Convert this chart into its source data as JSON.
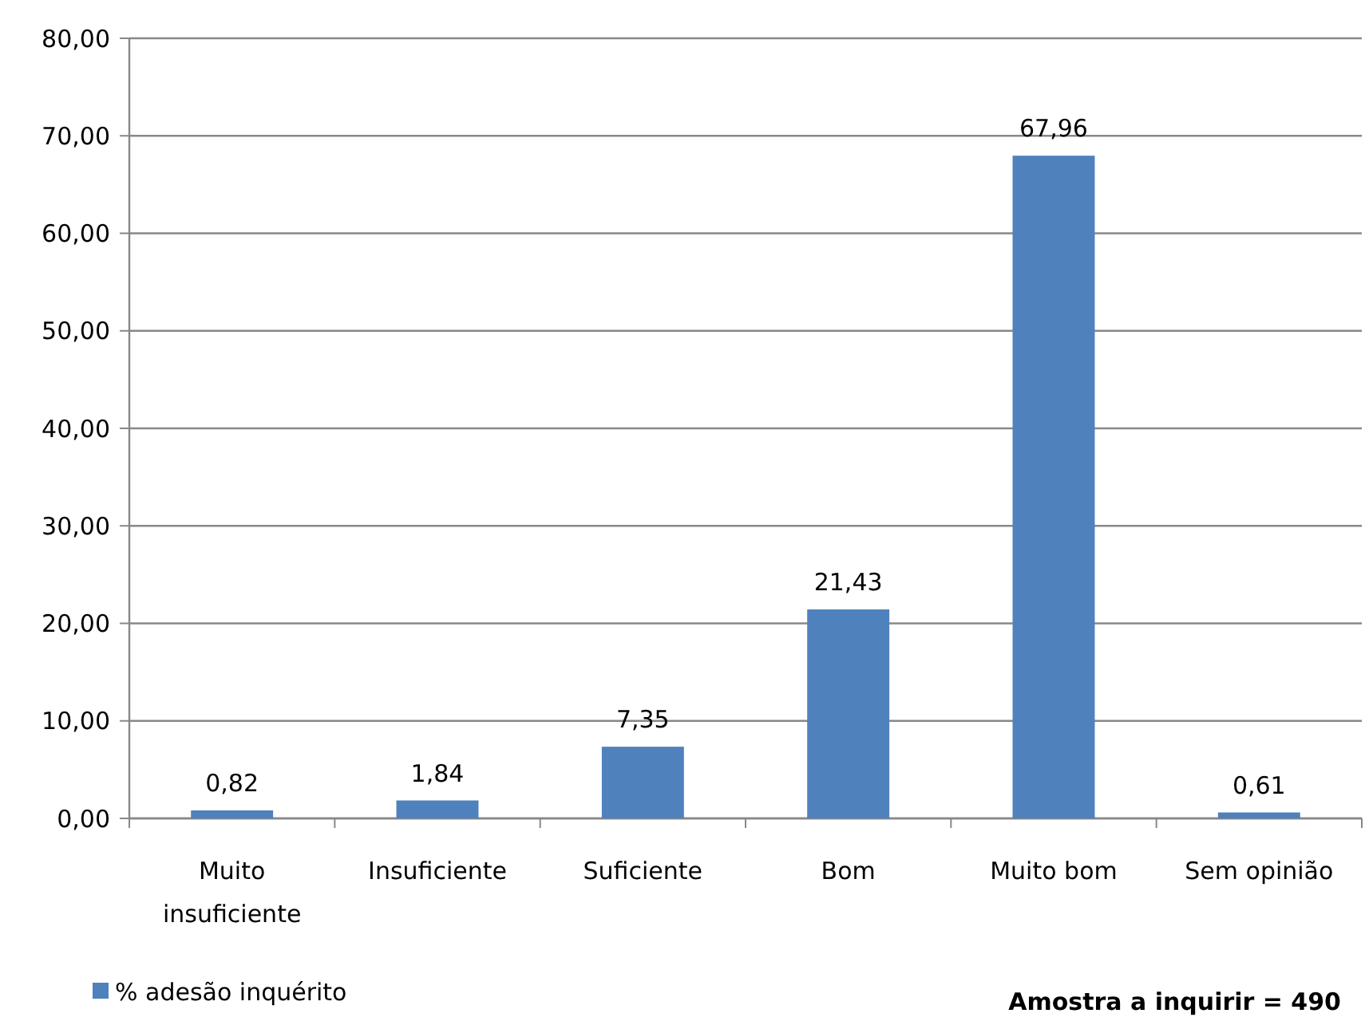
{
  "chart_data": {
    "type": "bar",
    "categories": [
      "Muito insuficiente",
      "Insuficiente",
      "Suficiente",
      "Bom",
      "Muito bom",
      "Sem opinião"
    ],
    "series": [
      {
        "name": "% adesão inquérito",
        "color": "#4f81bd",
        "values": [
          0.82,
          1.84,
          7.35,
          21.43,
          67.96,
          0.61
        ],
        "value_labels": [
          "0,82",
          "1,84",
          "7,35",
          "21,43",
          "67,96",
          "0,61"
        ]
      }
    ],
    "ylim": [
      0,
      80
    ],
    "yticks": [
      {
        "value": 0,
        "label": "0,00"
      },
      {
        "value": 10,
        "label": "10,00"
      },
      {
        "value": 20,
        "label": "20,00"
      },
      {
        "value": 30,
        "label": "30,00"
      },
      {
        "value": 40,
        "label": "40,00"
      },
      {
        "value": 50,
        "label": "50,00"
      },
      {
        "value": 60,
        "label": "60,00"
      },
      {
        "value": 70,
        "label": "70,00"
      },
      {
        "value": 80,
        "label": "80,00"
      }
    ],
    "grid": "y",
    "legend": "bottom left",
    "annotations": [
      "Amostra a inquirir = 490"
    ]
  }
}
